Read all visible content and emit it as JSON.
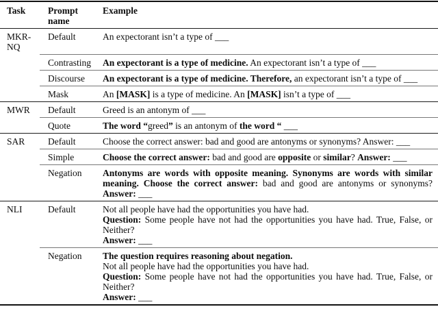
{
  "table": {
    "header": {
      "task": "Task",
      "prompt": "Prompt name",
      "example": "Example"
    },
    "sections": [
      {
        "task": "MKR-NQ",
        "rows": [
          {
            "prompt": "Default",
            "segments": [
              {
                "text": "An expectorant isn’t a type of ___"
              }
            ]
          },
          {
            "prompt": "Contrasting",
            "segments": [
              {
                "text": "An expectorant is a type of medicine.",
                "bold": true
              },
              {
                "text": " An expectorant isn’t a type of ___"
              }
            ]
          },
          {
            "prompt": "Discourse",
            "segments": [
              {
                "text": "An expectorant is a type of medicine. Therefore,",
                "bold": true
              },
              {
                "text": " an expectorant isn’t a type of ___"
              }
            ]
          },
          {
            "prompt": "Mask",
            "segments": [
              {
                "text": "An "
              },
              {
                "text": "[MASK]",
                "bold": true
              },
              {
                "text": " is a type of medicine. An "
              },
              {
                "text": "[MASK]",
                "bold": true
              },
              {
                "text": " isn’t a type of ___"
              }
            ]
          }
        ]
      },
      {
        "task": "MWR",
        "rows": [
          {
            "prompt": "Default",
            "segments": [
              {
                "text": "Greed is an antonym of ___"
              }
            ]
          },
          {
            "prompt": "Quote",
            "segments": [
              {
                "text": "The word “",
                "bold": true
              },
              {
                "text": "greed"
              },
              {
                "text": "”",
                "bold": true
              },
              {
                "text": " is an antonym of "
              },
              {
                "text": "the word “",
                "bold": true
              },
              {
                "text": " ___"
              }
            ]
          }
        ]
      },
      {
        "task": "SAR",
        "rows": [
          {
            "prompt": "Default",
            "segments": [
              {
                "text": "Choose the correct answer: bad and good are antonyms or synonyms? Answer: ___"
              }
            ]
          },
          {
            "prompt": "Simple",
            "segments": [
              {
                "text": "Choose the correct answer:",
                "bold": true
              },
              {
                "text": " bad and good are "
              },
              {
                "text": "opposite",
                "bold": true
              },
              {
                "text": " or "
              },
              {
                "text": "similar",
                "bold": true
              },
              {
                "text": "? "
              },
              {
                "text": "Answer:",
                "bold": true
              },
              {
                "text": " ___"
              }
            ]
          },
          {
            "prompt": "Negation",
            "segments": [
              {
                "text": "Antonyms are words with opposite meaning. Synonyms are words with similar meaning. Choose the correct answer:",
                "bold": true
              },
              {
                "text": " bad and good are antonyms or synonyms? "
              },
              {
                "text": "Answer:",
                "bold": true
              },
              {
                "text": " ___"
              }
            ]
          }
        ]
      },
      {
        "task": "NLI",
        "rows": [
          {
            "prompt": "Default",
            "segments": [
              {
                "text": "Not all people have had the opportunities you have had."
              },
              {
                "br": true
              },
              {
                "text": "Question:",
                "bold": true
              },
              {
                "text": " Some people have not had the opportunities you have had. True, False, or Neither?"
              },
              {
                "br": true
              },
              {
                "text": "Answer:",
                "bold": true
              },
              {
                "text": " ___"
              }
            ]
          },
          {
            "prompt": "Negation",
            "segments": [
              {
                "text": "The question requires reasoning about negation.",
                "bold": true
              },
              {
                "br": true
              },
              {
                "text": "Not all people have had the opportunities you have had."
              },
              {
                "br": true
              },
              {
                "text": "Question:",
                "bold": true
              },
              {
                "text": " Some people have not had the opportunities you have had. True, False, or Neither?"
              },
              {
                "br": true
              },
              {
                "text": "Answer:",
                "bold": true
              },
              {
                "text": " ___"
              }
            ]
          }
        ]
      }
    ]
  }
}
